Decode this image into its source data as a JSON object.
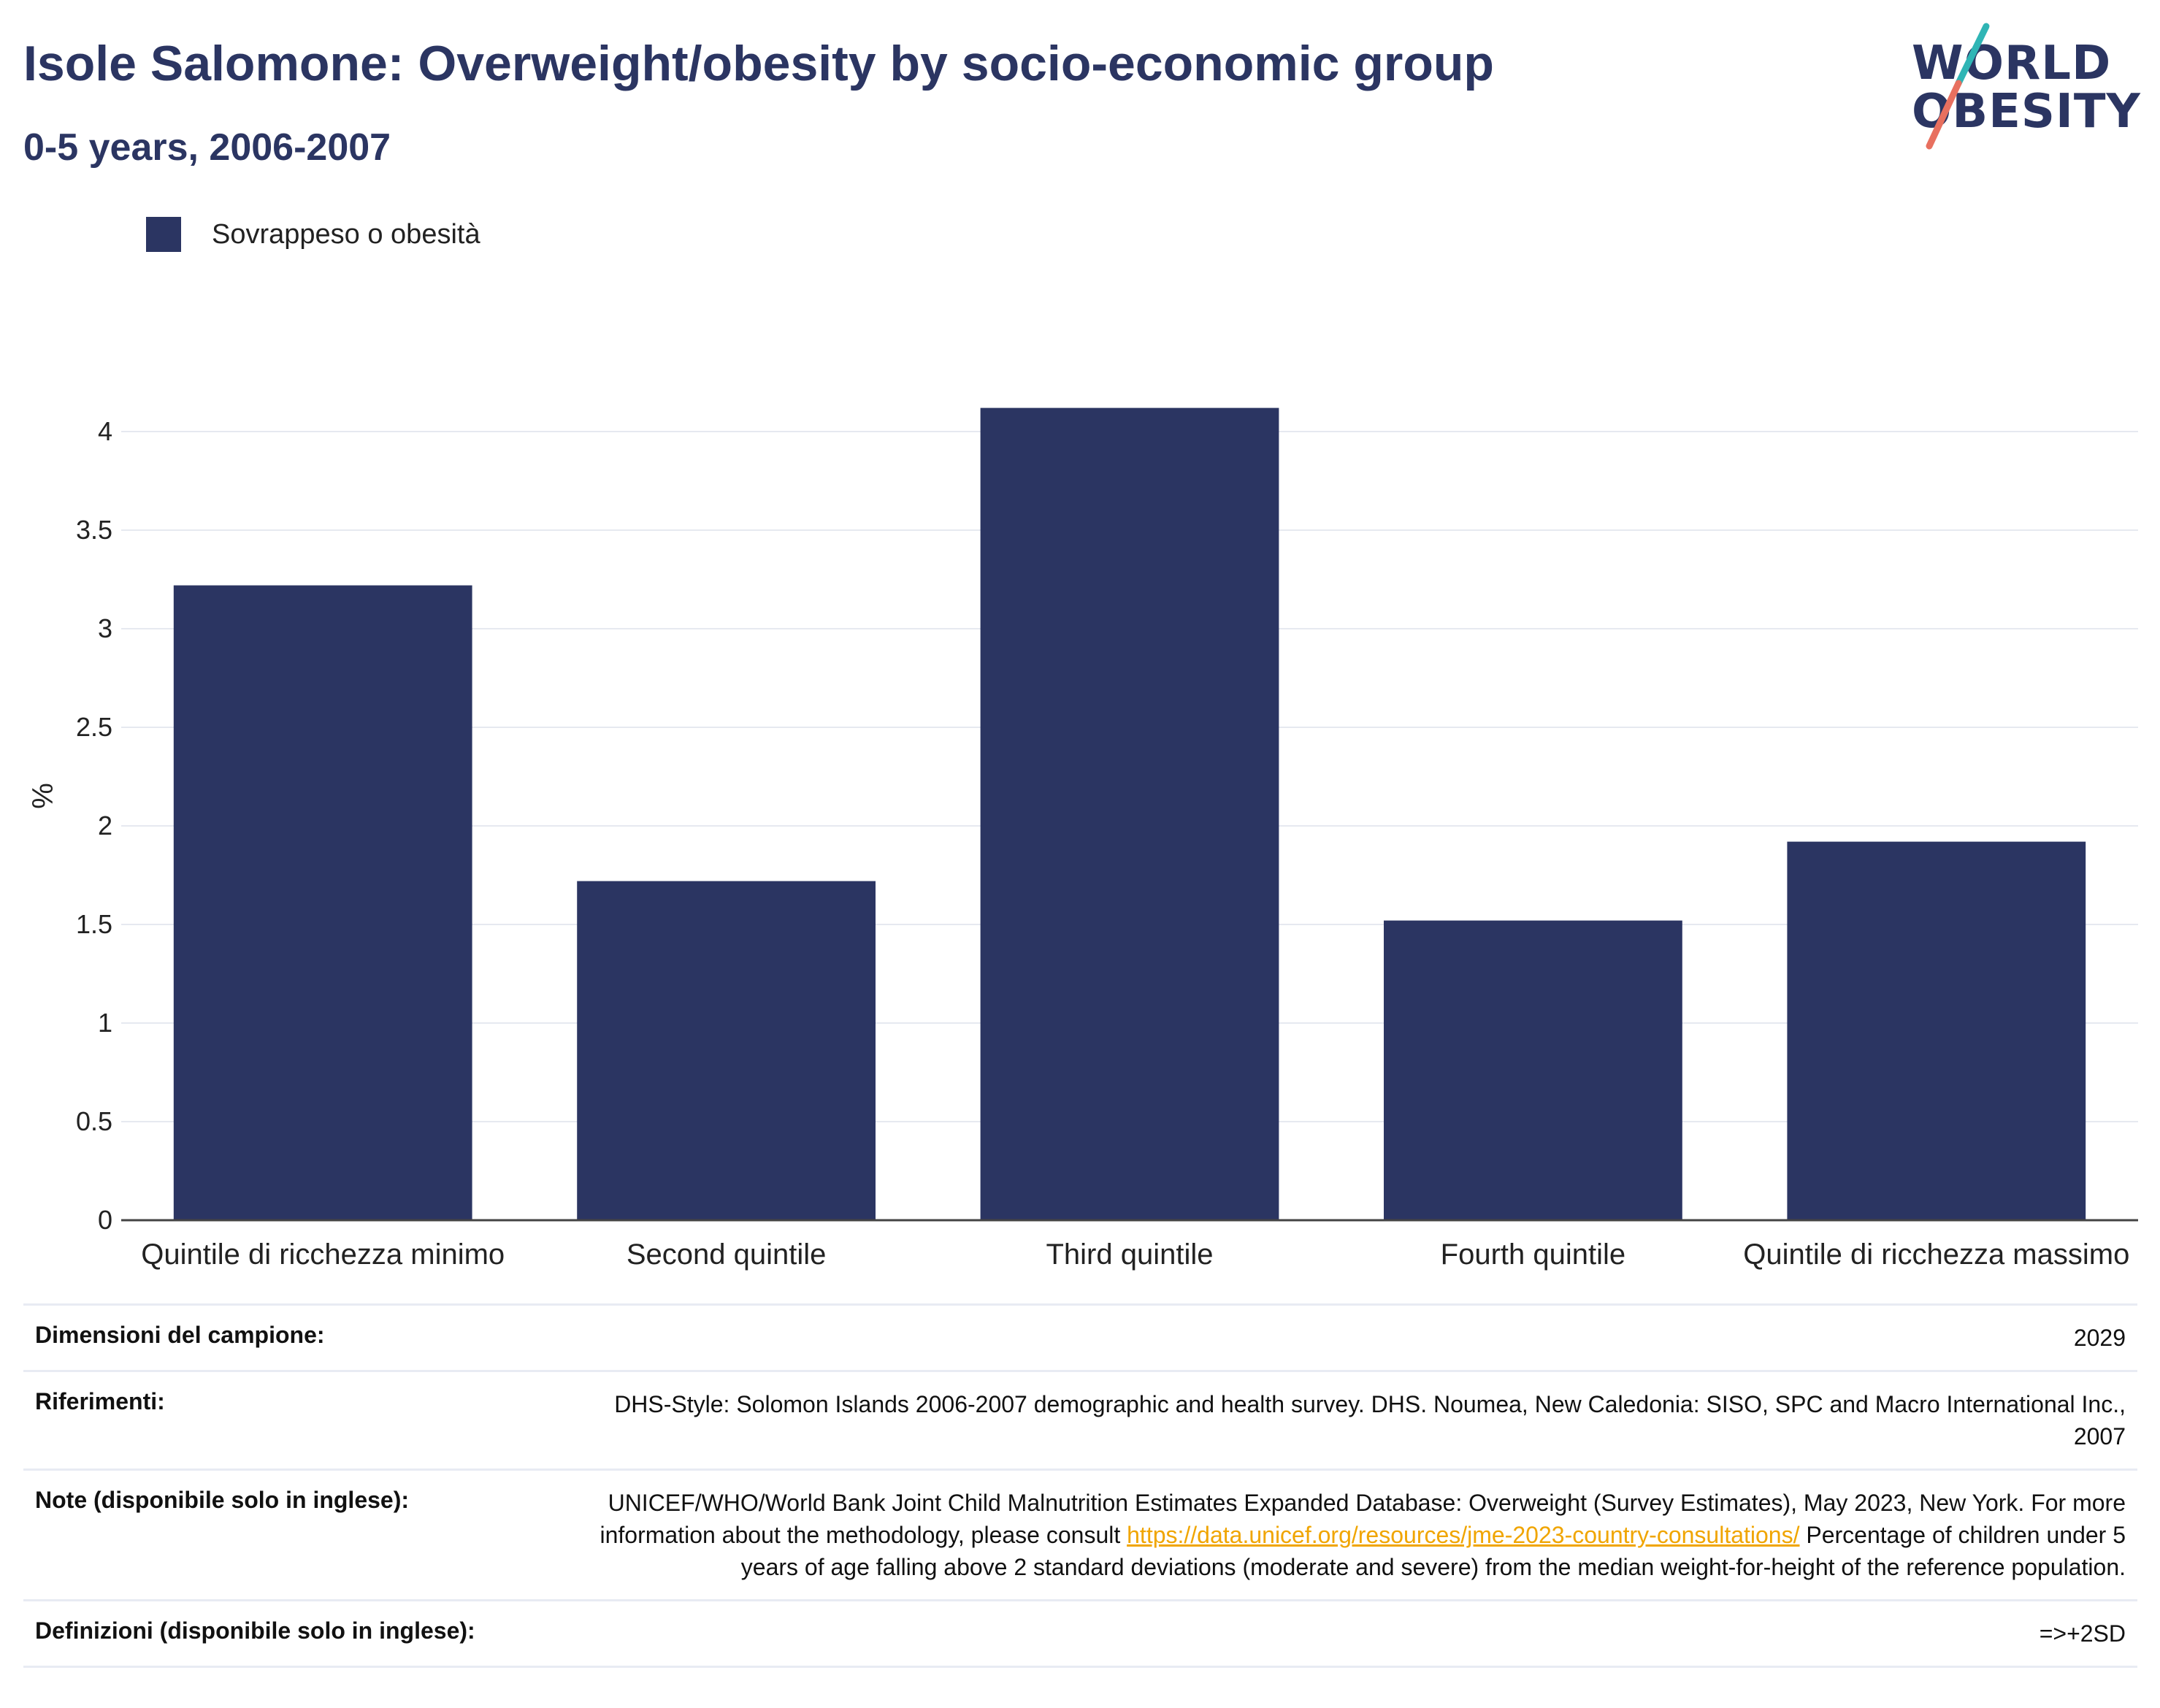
{
  "header": {
    "title": "Isole Salomone: Overweight/obesity by socio-economic group",
    "subtitle": "0-5 years, 2006-2007",
    "logo_line1": "WORLD",
    "logo_line2": "OBESITY"
  },
  "legend": {
    "label": "Sovrappeso o obesità",
    "color": "#2b3562"
  },
  "chart_data": {
    "type": "bar",
    "categories": [
      "Quintile di ricchezza minimo",
      "Second quintile",
      "Third quintile",
      "Fourth quintile",
      "Quintile di ricchezza massimo"
    ],
    "series": [
      {
        "name": "Sovrappeso o obesità",
        "values": [
          3.22,
          1.72,
          4.12,
          1.52,
          1.92
        ]
      }
    ],
    "ylabel": "%",
    "xlabel": "",
    "ylim": [
      0,
      4.4
    ],
    "yticks": [
      0,
      0.5,
      1,
      1.5,
      2,
      2.5,
      3,
      3.5,
      4
    ],
    "ytick_labels": [
      "0",
      "0.5",
      "1",
      "1.5",
      "2",
      "2.5",
      "3",
      "3.5",
      "4"
    ],
    "grid": true,
    "legend_position": "top-left",
    "bar_color": "#2b3562"
  },
  "meta": {
    "sample_label": "Dimensioni del campione:",
    "sample_value": "2029",
    "refs_label": "Riferimenti:",
    "refs_value": "DHS-Style: Solomon Islands 2006-2007 demographic and health survey. DHS. Noumea, New Caledonia: SISO, SPC and Macro International Inc., 2007",
    "notes_label": "Note (disponibile solo in inglese):",
    "notes_value_pre": "UNICEF/WHO/World Bank Joint Child Malnutrition Estimates Expanded Database: Overweight (Survey Estimates), May 2023, New York. For more information about the methodology, please consult ",
    "notes_link": "https://data.unicef.org/resources/jme-2023-country-consultations/",
    "notes_value_post": " Percentage of children under 5 years of age falling above 2 standard deviations (moderate and severe) from the median weight-for-height of the reference population.",
    "defs_label": "Definizioni (disponibile solo in inglese):",
    "defs_value": "=>+2SD"
  }
}
